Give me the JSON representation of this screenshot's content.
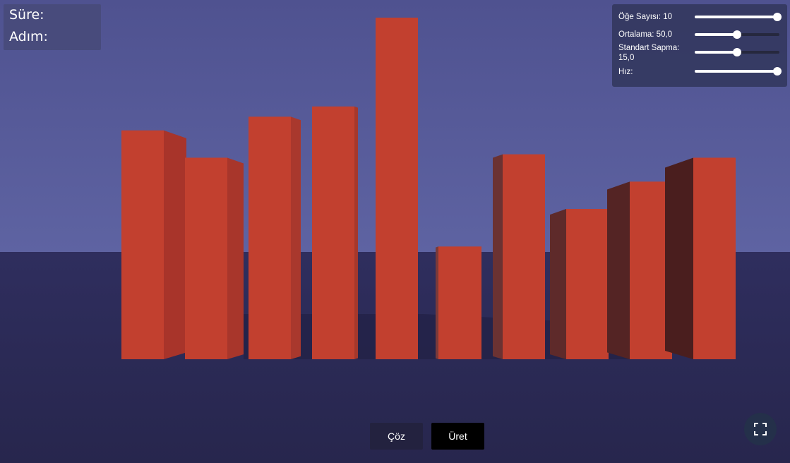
{
  "info": {
    "time_label": "Süre:",
    "steps_label": "Adım:"
  },
  "controls": {
    "item_count": {
      "label": "Öğe Sayısı: 10",
      "fraction": 1.0
    },
    "mean": {
      "label": "Ortalama: 50,0",
      "fraction": 0.5
    },
    "std_dev": {
      "label": "Standart Sapma: 15,0",
      "fraction": 0.5
    },
    "speed": {
      "label": "Hız:",
      "fraction": 1.0
    }
  },
  "buttons": {
    "solve_label": "Çöz",
    "generate_label": "Üret"
  },
  "colors": {
    "bar_front": "#c2402f",
    "sky": "#5a5e9c",
    "floor": "#2b2a55"
  },
  "bars": {
    "relative_heights": [
      0.67,
      0.59,
      0.71,
      0.74,
      1.0,
      0.33,
      0.6,
      0.44,
      0.52,
      0.59
    ]
  },
  "icons": {
    "fullscreen": "fullscreen-icon"
  }
}
